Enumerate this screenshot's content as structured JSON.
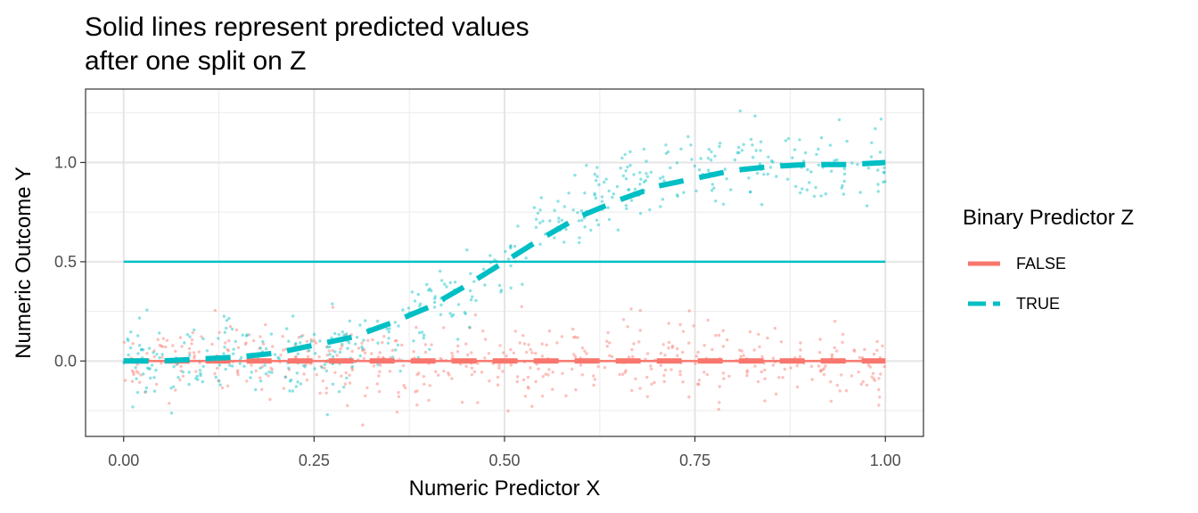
{
  "chart_data": {
    "type": "scatter",
    "title_line1": "Solid lines represent predicted values",
    "title_line2": "after one split on Z",
    "xlabel": "Numeric Predictor X",
    "ylabel": "Numeric Outcome Y",
    "xlim": [
      -0.05,
      1.05
    ],
    "ylim": [
      -0.38,
      1.37
    ],
    "x_ticks": [
      0.0,
      0.25,
      0.5,
      0.75,
      1.0
    ],
    "x_tick_labels": [
      "0.00",
      "0.25",
      "0.50",
      "0.75",
      "1.00"
    ],
    "y_ticks": [
      0.0,
      0.5,
      1.0
    ],
    "y_tick_labels": [
      "0.0",
      "0.5",
      "1.0"
    ],
    "grid": true,
    "legend": {
      "title": "Binary Predictor Z",
      "placement": "right",
      "entries": [
        {
          "label": "FALSE",
          "color": "#F8766D"
        },
        {
          "label": "TRUE",
          "color": "#00BFC4"
        }
      ]
    },
    "series": [
      {
        "name": "FALSE",
        "color": "#F8766D",
        "points_n": 500,
        "points_mean_function": "0",
        "points_noise_sd": 0.1,
        "true_curve_x": [
          0,
          0.1,
          0.2,
          0.3,
          0.4,
          0.5,
          0.6,
          0.7,
          0.8,
          0.9,
          1.0
        ],
        "true_curve_y": [
          0,
          0,
          0,
          0,
          0,
          0,
          0,
          0,
          0,
          0,
          0
        ],
        "prediction": 0.0
      },
      {
        "name": "TRUE",
        "color": "#00BFC4",
        "points_n": 500,
        "points_mean_function": "logistic",
        "points_noise_sd": 0.1,
        "true_curve_x": [
          0,
          0.05,
          0.1,
          0.15,
          0.2,
          0.25,
          0.3,
          0.35,
          0.4,
          0.45,
          0.5,
          0.55,
          0.6,
          0.65,
          0.7,
          0.75,
          0.8,
          0.85,
          0.9,
          0.95,
          1.0
        ],
        "true_curve_y": [
          0.0,
          0.0,
          0.01,
          0.02,
          0.04,
          0.08,
          0.12,
          0.19,
          0.27,
          0.38,
          0.5,
          0.62,
          0.73,
          0.81,
          0.88,
          0.92,
          0.96,
          0.98,
          0.99,
          0.99,
          1.0
        ],
        "prediction": 0.5
      }
    ]
  }
}
